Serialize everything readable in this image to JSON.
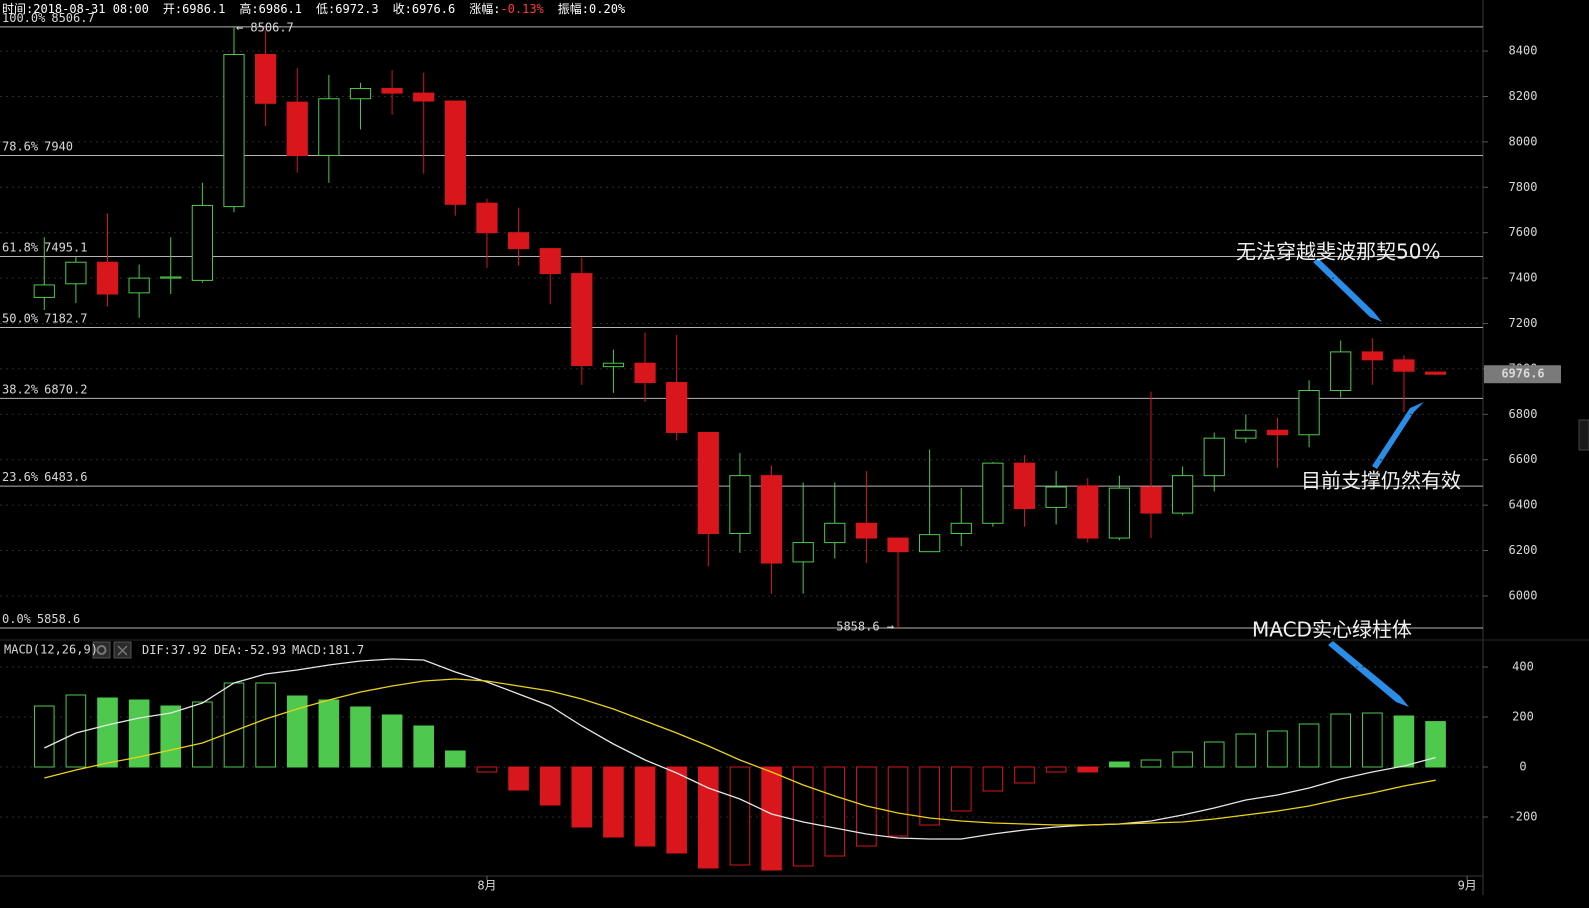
{
  "header": [
    {
      "label": "时间:",
      "value": "2018-08-31 08:00"
    },
    {
      "label": "开:",
      "value": 6986.1
    },
    {
      "label": "高:",
      "value": 6986.1
    },
    {
      "label": "低:",
      "value": 6972.3
    },
    {
      "label": "收:",
      "value": 6976.6
    },
    {
      "label": "涨幅:",
      "value": "-0.13%",
      "color": "#ff3b3b"
    },
    {
      "label": "振幅:",
      "value": "0.20%"
    }
  ],
  "chart_data": [
    {
      "type": "candlestick",
      "categories": [
        null,
        null,
        null,
        null,
        null,
        null,
        null,
        null,
        null,
        null,
        null,
        null,
        null,
        null,
        null,
        null,
        null,
        null,
        null,
        null,
        null,
        null,
        null,
        null,
        null,
        null,
        null,
        null,
        null,
        null,
        null,
        null,
        null,
        null,
        null,
        null,
        null,
        null,
        null,
        null,
        null,
        null,
        null,
        null,
        null
      ],
      "open": [
        7315,
        7375,
        7470,
        7335,
        7400,
        7390,
        7715,
        8385,
        8175,
        7940,
        8190,
        8235,
        8215,
        8180,
        7730,
        7600,
        7530,
        7420,
        7010,
        7025,
        6940,
        6720,
        6275,
        6530,
        6150,
        6235,
        6320,
        6255,
        6195,
        6275,
        6320,
        6585,
        6390,
        6485,
        6255,
        6480,
        6365,
        6530,
        6695,
        6730,
        6710,
        6905,
        7075,
        7040,
        6986.1
      ],
      "high": [
        7580,
        7495,
        7685,
        7460,
        7580,
        7820,
        8506.7,
        8490,
        8325,
        8295,
        8260,
        8315,
        8305,
        8180,
        7750,
        7710,
        7530,
        7490,
        7085,
        7160,
        7150,
        6720,
        6630,
        6575,
        6500,
        6500,
        6550,
        6255,
        6645,
        6475,
        6590,
        6620,
        6550,
        6520,
        6530,
        6900,
        6570,
        6720,
        6800,
        6785,
        6950,
        7125,
        7135,
        7060,
        6986.1
      ],
      "low": [
        7260,
        7290,
        7275,
        7225,
        7330,
        7380,
        7690,
        8070,
        7865,
        7820,
        8055,
        8120,
        7860,
        7675,
        7445,
        7455,
        7285,
        6930,
        6895,
        6855,
        6685,
        6130,
        6190,
        6010,
        6010,
        6165,
        6145,
        5858.6,
        6195,
        6220,
        6305,
        6305,
        6315,
        6235,
        6245,
        6255,
        6355,
        6460,
        6675,
        6565,
        6655,
        6875,
        6930,
        6810,
        6972.3
      ],
      "close": [
        7370,
        7470,
        7330,
        7400,
        7405,
        7720,
        8385,
        8170,
        7940,
        8190,
        8235,
        8215,
        8180,
        7725,
        7600,
        7530,
        7420,
        7015,
        7025,
        6940,
        6720,
        6275,
        6530,
        6145,
        6235,
        6320,
        6255,
        6195,
        6270,
        6320,
        6585,
        6385,
        6480,
        6255,
        6475,
        6365,
        6530,
        6695,
        6730,
        6710,
        6905,
        7075,
        7040,
        6990,
        6976.6
      ],
      "up_color": "#4ec94e",
      "down_color": "#d9161b",
      "xlim": [
        -1.4,
        45.5
      ],
      "xticks": [
        {
          "value": 14,
          "label": "8月"
        },
        {
          "value": 45,
          "label": "9月"
        }
      ],
      "ylim": [
        5828,
        8625
      ],
      "yticks": [
        6000,
        6200,
        6400,
        6600,
        6800,
        7000,
        7200,
        7400,
        7600,
        7800,
        8000,
        8200,
        8400
      ],
      "grid": true,
      "fib_levels": [
        {
          "level": "100.0%",
          "price": 8506.7
        },
        {
          "level": "78.6%",
          "price": 7940.0
        },
        {
          "level": "61.8%",
          "price": 7495.1
        },
        {
          "level": "50.0%",
          "price": 7182.7
        },
        {
          "level": "38.2%",
          "price": 6870.2
        },
        {
          "level": "23.6%",
          "price": 6483.6
        },
        {
          "level": "0.0%",
          "price": 5858.6
        }
      ],
      "last_price": 6976.6,
      "annotations": [
        "← 8506.7",
        "5858.6 →",
        "无法穿越斐波那契50%",
        "目前支撑仍然有效"
      ]
    },
    {
      "type": "macd",
      "title": "MACD(12,26,9)",
      "ylim": [
        -432,
        508
      ],
      "yticks": [
        -200,
        0,
        200,
        400
      ],
      "grid": true,
      "annotations": [
        "MACD实心绿柱体"
      ],
      "series": [
        {
          "name": "DIF:",
          "current": 37.92,
          "type": "line",
          "color": "#e6e6e6",
          "values": [
            76,
            136,
            168,
            196,
            216,
            256,
            336,
            372,
            388,
            408,
            424,
            432,
            428,
            380,
            340,
            292,
            244,
            164,
            92,
            28,
            -24,
            -84,
            -128,
            -188,
            -220,
            -244,
            -268,
            -284,
            -288,
            -288,
            -268,
            -252,
            -240,
            -232,
            -228,
            -216,
            -192,
            -164,
            -132,
            -112,
            -84,
            -48,
            -20,
            4,
            37.92
          ]
        },
        {
          "name": "DEA:",
          "current": -52.93,
          "type": "line",
          "color": "#e8d21c",
          "values": [
            -44,
            -12,
            16,
            40,
            68,
            96,
            144,
            192,
            232,
            268,
            300,
            324,
            344,
            352,
            344,
            324,
            304,
            272,
            232,
            184,
            136,
            84,
            28,
            -20,
            -72,
            -116,
            -156,
            -184,
            -204,
            -216,
            -224,
            -228,
            -232,
            -232,
            -228,
            -224,
            -220,
            -208,
            -192,
            -176,
            -156,
            -128,
            -104,
            -76,
            -52.93
          ]
        },
        {
          "name": "MACD:",
          "current": 181.7,
          "type": "bar",
          "color": "#cc33cc",
          "up_color": "#4ec94e",
          "down_color": "#d9161b",
          "values": [
            244,
            288,
            276,
            268,
            244,
            260,
            336,
            336,
            284,
            268,
            240,
            208,
            164,
            64,
            -20,
            -92,
            -152,
            -240,
            -280,
            -316,
            -344,
            -404,
            -392,
            -412,
            -396,
            -356,
            -316,
            -276,
            -232,
            -176,
            -96,
            -64,
            -20,
            -20,
            20,
            28,
            60,
            100,
            132,
            144,
            172,
            212,
            216,
            204,
            181.7
          ]
        }
      ]
    }
  ]
}
